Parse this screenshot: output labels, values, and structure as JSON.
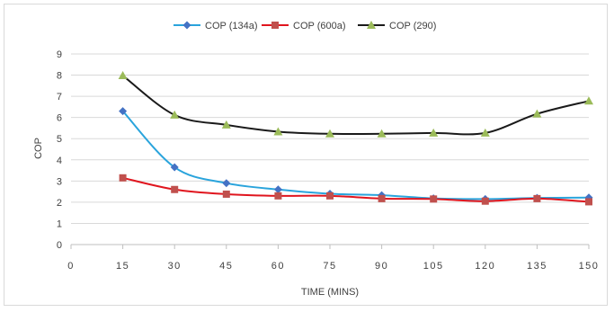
{
  "chart_data": {
    "type": "line",
    "title": "",
    "xlabel": "TIME (MINS)",
    "ylabel": "COP",
    "x_ticks": [
      "0",
      "15",
      "30",
      "45",
      "60",
      "75",
      "90",
      "105",
      "120",
      "135",
      "150"
    ],
    "y_ticks": [
      "0",
      "1",
      "2",
      "3",
      "4",
      "5",
      "6",
      "7",
      "8",
      "9"
    ],
    "xlim": [
      0,
      150
    ],
    "ylim": [
      0,
      9
    ],
    "grid": "horizontal",
    "legend_position": "top-center",
    "x": [
      15,
      30,
      45,
      60,
      75,
      90,
      105,
      120,
      135,
      150
    ],
    "series": [
      {
        "name": "COP (134a)",
        "color": "#2aa4dc",
        "marker": "diamond",
        "marker_color": "#4472c4",
        "values": [
          6.3,
          3.65,
          2.9,
          2.6,
          2.4,
          2.33,
          2.18,
          2.15,
          2.2,
          2.22
        ]
      },
      {
        "name": "COP (600a)",
        "color": "#e0151e",
        "marker": "square",
        "marker_color": "#c0504d",
        "values": [
          3.15,
          2.6,
          2.38,
          2.3,
          2.3,
          2.17,
          2.15,
          2.05,
          2.17,
          2.02
        ]
      },
      {
        "name": "COP (290)",
        "color": "#1a1a1a",
        "marker": "triangle",
        "marker_color": "#9bbb59",
        "values": [
          7.98,
          6.12,
          5.65,
          5.33,
          5.23,
          5.23,
          5.27,
          5.27,
          6.17,
          6.78
        ]
      }
    ]
  }
}
